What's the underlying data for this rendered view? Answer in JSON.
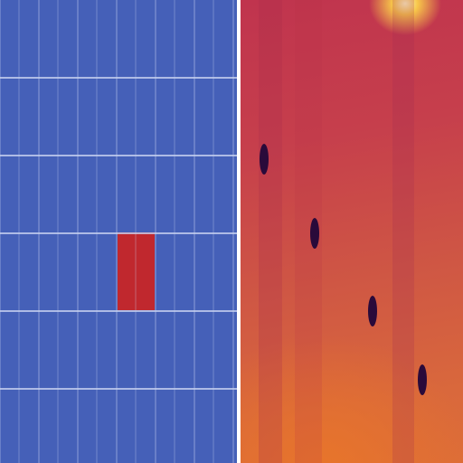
{
  "grid_panel": {
    "background_color": "#4560b8",
    "grid_line_color": "#c8d2f0",
    "cols": 6,
    "rows": 6,
    "highlight_color": "#c0282e",
    "highlight_cell": {
      "col": 3,
      "row": 3
    }
  },
  "heatmap_panel": {
    "colormap": "inferno-like",
    "background_color": "#c8464a",
    "hot_spot_color": "#fff4b0",
    "dark_spot_color": "#2a0a3a",
    "dark_spot_count": 4
  }
}
